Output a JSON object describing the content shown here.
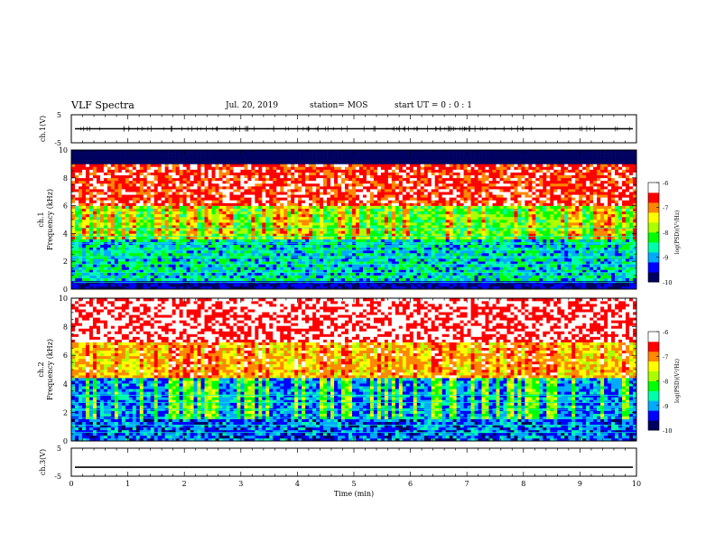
{
  "header": {
    "title": "VLF Spectra",
    "date": "Jul. 20, 2019",
    "station": "station= MOS",
    "start": "start UT =  0 : 0  : 1"
  },
  "chart_data": [
    {
      "type": "line",
      "panel": "ch1-waveform",
      "ylabel": "ch.1(V)",
      "ylim": [
        -5,
        5
      ],
      "yticks": [
        "5",
        "-5"
      ],
      "xlim": [
        0,
        10
      ],
      "series": [
        {
          "values_description_level": 0
        }
      ]
    },
    {
      "type": "heatmap",
      "panel": "ch1-spectrogram",
      "ylabel": "ch.1\nFrequency (kHz)",
      "ylim": [
        0,
        10
      ],
      "yticks": [
        "0",
        "2",
        "4",
        "6",
        "8",
        "10"
      ],
      "xlim": [
        0,
        10
      ],
      "colorbar": {
        "label": "log(PSD)(V²/Hz)",
        "range": [
          -10,
          -6
        ],
        "ticks": [
          "-6",
          "-7",
          "-8",
          "-9",
          "-10"
        ]
      }
    },
    {
      "type": "heatmap",
      "panel": "ch2-spectrogram",
      "ylabel": "ch.2\nFrequency (kHz)",
      "ylim": [
        0,
        10
      ],
      "yticks": [
        "0",
        "2",
        "4",
        "6",
        "8",
        "10"
      ],
      "xlim": [
        0,
        10
      ],
      "colorbar": {
        "label": "log(PSD)(V²/Hz)",
        "range": [
          -10,
          -6
        ],
        "ticks": [
          "-6",
          "-7",
          "-8",
          "-9",
          "-10"
        ]
      }
    },
    {
      "type": "line",
      "panel": "ch3-waveform",
      "ylabel": "ch.3(V)",
      "ylim": [
        -5,
        5
      ],
      "yticks": [
        "5",
        "-5"
      ],
      "xlim": [
        0,
        10
      ],
      "xlabel": "Time (min)",
      "xticks": [
        "0",
        "1",
        "2",
        "3",
        "4",
        "5",
        "6",
        "7",
        "8",
        "9",
        "10"
      ],
      "series": [
        {
          "values_description_level": -1.8
        }
      ]
    }
  ],
  "colors": {
    "colormap": [
      "#000060",
      "#0000ff",
      "#00aaff",
      "#00ffaa",
      "#00ff00",
      "#aaff00",
      "#ffff00",
      "#ff8800",
      "#ff0000",
      "#ffffff"
    ]
  }
}
